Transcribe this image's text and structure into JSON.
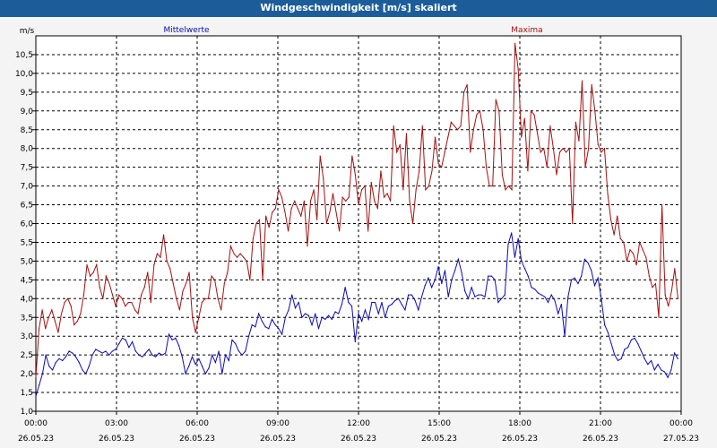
{
  "window": {
    "title": "Windgeschwindigkeit [m/s] skaliert"
  },
  "colors": {
    "mean": "#0b0bb5",
    "max": "#a51010",
    "background": "#ffffff",
    "grid": "#000000"
  },
  "chart_data": {
    "type": "line",
    "ylabel": "m/s",
    "ylim": [
      1.0,
      11.0
    ],
    "yticks": [
      "1,0",
      "1,5",
      "2,0",
      "2,5",
      "3,0",
      "3,5",
      "4,0",
      "4,5",
      "5,0",
      "5,5",
      "6,0",
      "6,5",
      "7,0",
      "7,5",
      "8,0",
      "8,5",
      "9,0",
      "9,5",
      "10,0",
      "10,5"
    ],
    "xlim": [
      0,
      24
    ],
    "xticks": [
      {
        "time": "00:00",
        "date": "26.05.23"
      },
      {
        "time": "03:00",
        "date": "26.05.23"
      },
      {
        "time": "06:00",
        "date": "26.05.23"
      },
      {
        "time": "09:00",
        "date": "26.05.23"
      },
      {
        "time": "12:00",
        "date": "26.05.23"
      },
      {
        "time": "15:00",
        "date": "26.05.23"
      },
      {
        "time": "18:00",
        "date": "26.05.23"
      },
      {
        "time": "21:00",
        "date": "26.05.23"
      },
      {
        "time": "00:00",
        "date": "27.05.23"
      }
    ],
    "series": [
      {
        "name": "Mittelwerte",
        "values": [
          1.4,
          1.7,
          2.0,
          2.5,
          2.2,
          2.1,
          2.3,
          2.4,
          2.35,
          2.45,
          2.6,
          2.55,
          2.45,
          2.3,
          2.1,
          2.0,
          2.2,
          2.5,
          2.65,
          2.6,
          2.55,
          2.6,
          2.5,
          2.6,
          2.65,
          2.8,
          2.95,
          2.9,
          2.7,
          2.85,
          2.6,
          2.5,
          2.45,
          2.55,
          2.65,
          2.5,
          2.45,
          2.55,
          2.5,
          2.55,
          3.05,
          2.9,
          2.95,
          2.75,
          2.45,
          2.0,
          2.2,
          2.45,
          2.25,
          2.4,
          2.2,
          2.0,
          2.15,
          2.5,
          2.3,
          2.6,
          2.0,
          2.5,
          2.35,
          2.9,
          2.8,
          2.6,
          2.5,
          2.6,
          3.0,
          3.3,
          3.25,
          3.6,
          3.4,
          3.25,
          3.2,
          3.45,
          3.3,
          3.2,
          3.05,
          3.5,
          3.7,
          4.1,
          3.75,
          3.9,
          3.5,
          3.6,
          3.55,
          3.3,
          3.6,
          3.2,
          3.5,
          3.45,
          3.55,
          3.45,
          3.65,
          3.6,
          3.85,
          4.3,
          3.9,
          3.8,
          2.85,
          3.6,
          3.4,
          3.7,
          3.45,
          3.9,
          3.9,
          3.6,
          3.9,
          3.5,
          3.8,
          3.85,
          3.95,
          4.0,
          3.85,
          3.7,
          4.1,
          4.1,
          3.95,
          3.7,
          4.05,
          4.35,
          4.55,
          4.3,
          4.5,
          4.85,
          4.4,
          4.75,
          4.05,
          4.5,
          4.75,
          5.05,
          4.7,
          4.2,
          4.0,
          4.3,
          4.05,
          4.1,
          4.1,
          4.05,
          4.6,
          4.6,
          4.5,
          3.9,
          4.0,
          4.1,
          5.45,
          5.75,
          5.1,
          5.6,
          5.0,
          4.8,
          4.6,
          4.3,
          4.25,
          4.15,
          4.1,
          4.05,
          3.9,
          4.1,
          3.95,
          3.6,
          3.85,
          3.0,
          4.05,
          4.5,
          4.55,
          4.4,
          4.6,
          5.05,
          4.95,
          4.75,
          4.35,
          4.55,
          4.0,
          3.3,
          3.1,
          2.8,
          2.5,
          2.35,
          2.4,
          2.65,
          2.7,
          2.9,
          2.95,
          2.8,
          2.6,
          2.4,
          2.25,
          2.35,
          2.1,
          2.25,
          2.1,
          2.05,
          1.9,
          2.1,
          2.55,
          2.4
        ]
      },
      {
        "name": "Maxima",
        "values": [
          1.9,
          3.2,
          3.7,
          3.2,
          3.5,
          3.7,
          3.4,
          3.1,
          3.6,
          3.9,
          4.0,
          3.8,
          3.3,
          3.4,
          3.6,
          4.1,
          4.9,
          4.6,
          4.7,
          4.9,
          4.3,
          4.0,
          4.6,
          4.4,
          4.1,
          3.8,
          4.1,
          4.0,
          3.8,
          3.9,
          3.9,
          3.7,
          3.6,
          4.1,
          4.3,
          4.7,
          3.9,
          4.9,
          5.2,
          5.1,
          5.7,
          5.0,
          4.8,
          4.4,
          4.0,
          3.7,
          4.2,
          4.4,
          4.7,
          3.5,
          3.1,
          3.5,
          3.9,
          4.0,
          4.0,
          4.6,
          4.5,
          4.0,
          3.7,
          4.4,
          4.7,
          5.4,
          5.2,
          5.1,
          5.2,
          5.1,
          5.0,
          4.5,
          5.6,
          6.0,
          6.1,
          4.5,
          6.2,
          5.9,
          6.3,
          6.4,
          6.9,
          6.7,
          6.3,
          5.8,
          6.4,
          6.6,
          6.4,
          6.2,
          6.6,
          5.4,
          6.6,
          6.9,
          6.1,
          7.8,
          7.2,
          6.0,
          6.3,
          6.8,
          6.3,
          5.8,
          6.7,
          6.6,
          6.7,
          7.8,
          7.3,
          6.5,
          6.9,
          7.0,
          5.8,
          7.1,
          6.6,
          6.4,
          7.4,
          6.7,
          6.8,
          6.6,
          8.6,
          7.9,
          8.1,
          6.9,
          8.4,
          6.6,
          6.0,
          6.9,
          7.4,
          8.6,
          6.9,
          7.0,
          7.4,
          8.3,
          7.6,
          7.5,
          7.9,
          8.3,
          8.7,
          8.6,
          8.5,
          8.6,
          9.5,
          9.7,
          7.9,
          8.5,
          8.9,
          9.0,
          8.5,
          7.5,
          7.0,
          7.0,
          9.3,
          9.0,
          7.3,
          6.9,
          7.0,
          6.9,
          10.8,
          10.1,
          8.3,
          8.8,
          7.4,
          9.0,
          8.9,
          8.4,
          7.9,
          8.0,
          7.5,
          8.6,
          8.0,
          7.3,
          7.9,
          8.0,
          7.9,
          8.0,
          6.0,
          8.7,
          8.2,
          9.8,
          7.5,
          8.0,
          9.7,
          9.0,
          8.1,
          7.9,
          8.0,
          6.8,
          6.1,
          5.7,
          6.2,
          5.6,
          5.5,
          5.0,
          5.3,
          5.2,
          4.9,
          5.5,
          5.3,
          5.1,
          4.6,
          4.3,
          4.4,
          3.5,
          6.5,
          4.1,
          3.8,
          4.2,
          4.8,
          4.0
        ]
      }
    ],
    "legend": "top, above plot"
  }
}
